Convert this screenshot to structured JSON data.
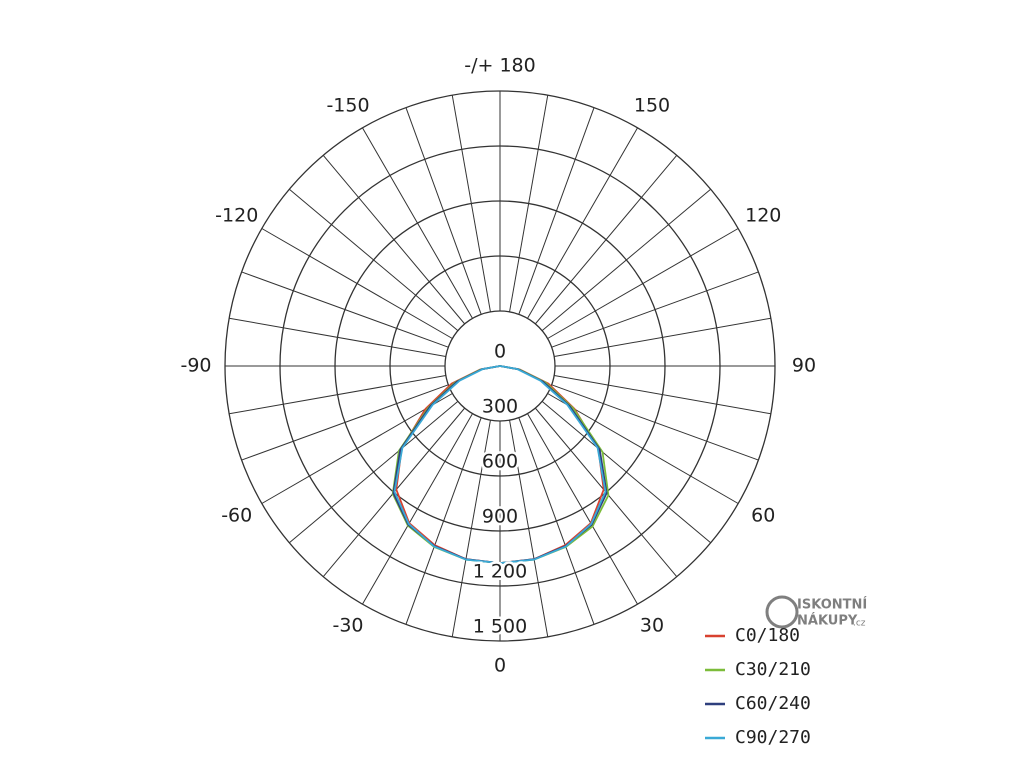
{
  "chart_data": {
    "type": "polar",
    "theta": [
      -90,
      -80,
      -70,
      -60,
      -50,
      -40,
      -30,
      -20,
      -10,
      0,
      10,
      20,
      30,
      40,
      50,
      60,
      70,
      80,
      90
    ],
    "series": [
      {
        "name": "C0/180",
        "color": "#d8412f",
        "values": [
          0,
          110,
          280,
          470,
          700,
          880,
          990,
          1040,
          1070,
          1075,
          1070,
          1040,
          990,
          880,
          700,
          470,
          280,
          110,
          0
        ]
      },
      {
        "name": "C30/210",
        "color": "#7cbc3a",
        "values": [
          0,
          105,
          260,
          450,
          720,
          910,
          1005,
          1050,
          1072,
          1075,
          1072,
          1050,
          1010,
          920,
          730,
          460,
          265,
          105,
          0
        ]
      },
      {
        "name": "C60/240",
        "color": "#2e3f7d",
        "values": [
          0,
          100,
          250,
          440,
          710,
          905,
          1000,
          1045,
          1070,
          1075,
          1070,
          1045,
          1000,
          905,
          710,
          440,
          250,
          100,
          0
        ]
      },
      {
        "name": "C90/270",
        "color": "#3aa9d6",
        "values": [
          0,
          95,
          235,
          425,
          695,
          895,
          995,
          1048,
          1072,
          1075,
          1072,
          1048,
          995,
          895,
          695,
          425,
          235,
          95,
          0
        ]
      }
    ],
    "rlim": [
      0,
      1500
    ],
    "rticks": [
      0,
      300,
      600,
      900,
      {
        "value": 1200,
        "label": "1 200"
      },
      {
        "value": 1500,
        "label": "1 500"
      }
    ],
    "thetaticks": [
      -150,
      -120,
      -90,
      -60,
      -30,
      0,
      30,
      60,
      90,
      120,
      150,
      {
        "value": 180,
        "label": "-/+ 180"
      }
    ],
    "theta_gridlines": [
      -170,
      -160,
      -150,
      -140,
      -130,
      -120,
      -110,
      -100,
      -90,
      -80,
      -70,
      -60,
      -50,
      -40,
      -30,
      -20,
      -10,
      0,
      10,
      20,
      30,
      40,
      50,
      60,
      70,
      80,
      90,
      100,
      110,
      120,
      130,
      140,
      150,
      160,
      170,
      180
    ],
    "legend": "bottom-right"
  },
  "logo": {
    "line1": "ISKONTNÍ",
    "line2": "NÁKUPY",
    "suffix": ".cz"
  }
}
